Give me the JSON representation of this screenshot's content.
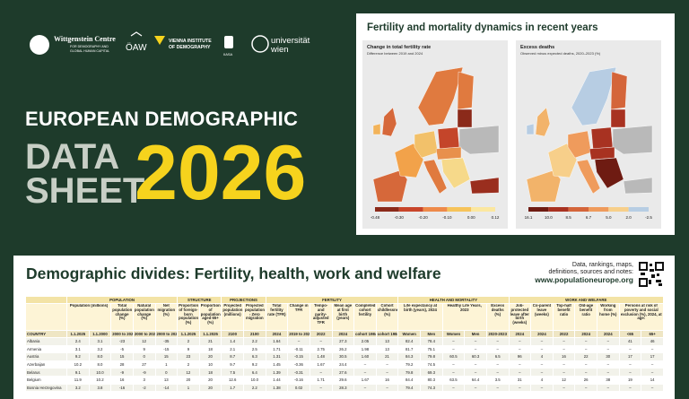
{
  "header": {
    "logos": {
      "wittgenstein": "Wittgenstein Centre",
      "wittgenstein_sub": [
        "FOR DEMOGRAPHY AND",
        "GLOBAL HUMAN CAPITAL"
      ],
      "oeaw": "ÖAW",
      "vid": [
        "VIENNA INSTITUTE",
        "OF DEMOGRAPHY"
      ],
      "iiasa": "IIASA",
      "univie": [
        "universität",
        "wien"
      ]
    },
    "title_line1": "EUROPEAN DEMOGRAPHIC",
    "title_line2": "DATA",
    "title_line3": "SHEET",
    "year": "2026"
  },
  "maps": {
    "title": "Fertility and mortality dynamics in recent years",
    "panels": [
      {
        "title": "Change in total fertility rate",
        "subtitle": "Difference between 2019 and 2024",
        "legend": [
          "-0.48",
          "-0.30",
          "-0.20",
          "-0.10",
          "0.00",
          "0.12"
        ]
      },
      {
        "title": "Excess deaths",
        "subtitle": "Observed minus expected deaths, 2020–2023 (%)",
        "legend": [
          "16.1",
          "10.0",
          "8.5",
          "6.7",
          "5.0",
          "2.0",
          "-2.5"
        ]
      }
    ]
  },
  "table": {
    "title": "Demographic divides: Fertility, health, work and welfare",
    "links": [
      "Data, rankings, maps,",
      "definitions, sources and notes:"
    ],
    "url": "www.populationeurope.org",
    "groups": [
      {
        "text": "POPULATION",
        "span": 5
      },
      {
        "text": "STRUCTURE",
        "span": 2
      },
      {
        "text": "PROJECTIONS",
        "span": 2
      },
      {
        "text": "FERTILITY",
        "span": 6
      },
      {
        "text": "HEALTH AND MORTALITY",
        "span": 5
      },
      {
        "text": "WORK AND WELFARE",
        "span": 7
      }
    ],
    "headers": [
      {
        "text": "Population (millions)",
        "span": 2
      },
      {
        "text": "Total population change (%)",
        "span": 1
      },
      {
        "text": "Natural population change (%)",
        "span": 1
      },
      {
        "text": "Net migration (%)",
        "span": 1
      },
      {
        "text": "Proportion of foreign-born population (%)",
        "span": 1
      },
      {
        "text": "Proportion of population aged 65+ (%)",
        "span": 1
      },
      {
        "text": "Projected population (millions)",
        "span": 1
      },
      {
        "text": "Projected population - Zero migration",
        "span": 1
      },
      {
        "text": "Total fertility rate (TFR)",
        "span": 1
      },
      {
        "text": "Change in TFR",
        "span": 1
      },
      {
        "text": "Tempo- and parity-adjusted TFR",
        "span": 1
      },
      {
        "text": "Mean age at first birth (years)",
        "span": 1
      },
      {
        "text": "Completed cohort fertility",
        "span": 1
      },
      {
        "text": "Cohort childlessness (%)",
        "span": 1
      },
      {
        "text": "Life expectancy at birth (years), 2024",
        "span": 2
      },
      {
        "text": "Healthy Life Years, 2023",
        "span": 2
      },
      {
        "text": "Excess deaths (%)",
        "span": 1
      },
      {
        "text": "Job-protected leave after birth (weeks)",
        "span": 1
      },
      {
        "text": "Co-parent leave (weeks)",
        "span": 1
      },
      {
        "text": "Top-half benefit ratio",
        "span": 1
      },
      {
        "text": "Old-age benefit ratio",
        "span": 1
      },
      {
        "text": "Working from home (%)",
        "span": 1
      },
      {
        "text": "Persons at risk of poverty and social exclusion (%), 2024, at age:",
        "span": 2
      }
    ],
    "subheaders": [
      "COUNTRY",
      "1.1.2025",
      "1.1.2000",
      "2000 to 2024",
      "2000 to 2024",
      "2000 to 2024",
      "1.1.2025",
      "1.1.2025",
      "2100",
      "2100",
      "2024",
      "2019 to 2024",
      "2022",
      "2024",
      "cohort 1984",
      "cohort 1984",
      "Women",
      "Men",
      "Women",
      "Men",
      "2020-2023",
      "2024",
      "2024",
      "2022",
      "2024",
      "2024",
      "<65",
      "65+"
    ],
    "rows": [
      [
        "Albania",
        "2.4",
        "3.1",
        "-23",
        "12",
        "-35",
        "2",
        "21",
        "1.4",
        "2.2",
        "1.64",
        "–",
        "–",
        "27.3",
        "2.05",
        "13",
        "82.4",
        "78.4",
        "–",
        "–",
        "–",
        "–",
        "–",
        "–",
        "–",
        "–",
        "41",
        "46"
      ],
      [
        "Armenia",
        "3.1",
        "3.2",
        "-5",
        "9",
        "-15",
        "9",
        "18",
        "2.1",
        "2.5",
        "1.71",
        "-0.11",
        "2.75",
        "26.2",
        "1.98",
        "13",
        "81.7",
        "75.1",
        "–",
        "–",
        "–",
        "–",
        "–",
        "–",
        "–",
        "–",
        "–",
        "–"
      ],
      [
        "Austria",
        "9.2",
        "8.0",
        "15",
        "0",
        "15",
        "23",
        "20",
        "8.7",
        "6.3",
        "1.31",
        "-0.15",
        "1.48",
        "30.5",
        "1.60",
        "21",
        "84.3",
        "79.8",
        "60.5",
        "60.3",
        "6.5",
        "96",
        "4",
        "16",
        "22",
        "30",
        "17",
        "17"
      ],
      [
        "Azerbaijan",
        "10.2",
        "8.0",
        "28",
        "27",
        "1",
        "2",
        "10",
        "9.7",
        "9.2",
        "1.45",
        "-0.36",
        "1.67",
        "24.4",
        "–",
        "–",
        "79.2",
        "74.5",
        "–",
        "–",
        "–",
        "–",
        "–",
        "–",
        "–",
        "–",
        "–",
        "–"
      ],
      [
        "Belarus",
        "9.1",
        "10.0",
        "-9",
        "-9",
        "0",
        "12",
        "18",
        "7.5",
        "6.4",
        "1.39",
        "-0.31",
        "–",
        "27.6",
        "–",
        "–",
        "79.8",
        "69.3",
        "–",
        "–",
        "–",
        "–",
        "–",
        "–",
        "–",
        "–",
        "–",
        "–"
      ],
      [
        "Belgium",
        "11.9",
        "10.2",
        "16",
        "3",
        "13",
        "20",
        "20",
        "12.6",
        "10.0",
        "1.44",
        "-0.16",
        "1.71",
        "29.6",
        "1.67",
        "16",
        "84.4",
        "80.3",
        "63.5",
        "64.4",
        "3.5",
        "31",
        "4",
        "12",
        "26",
        "38",
        "19",
        "14"
      ],
      [
        "Bosnia Herzegovina",
        "3.2",
        "3.8",
        "-16",
        "-2",
        "-14",
        "1",
        "20",
        "1.7",
        "2.2",
        "1.38",
        "0.02",
        "–",
        "28.3",
        "–",
        "–",
        "79.4",
        "74.3",
        "–",
        "–",
        "–",
        "–",
        "–",
        "–",
        "–",
        "–",
        "–",
        "–"
      ]
    ]
  }
}
